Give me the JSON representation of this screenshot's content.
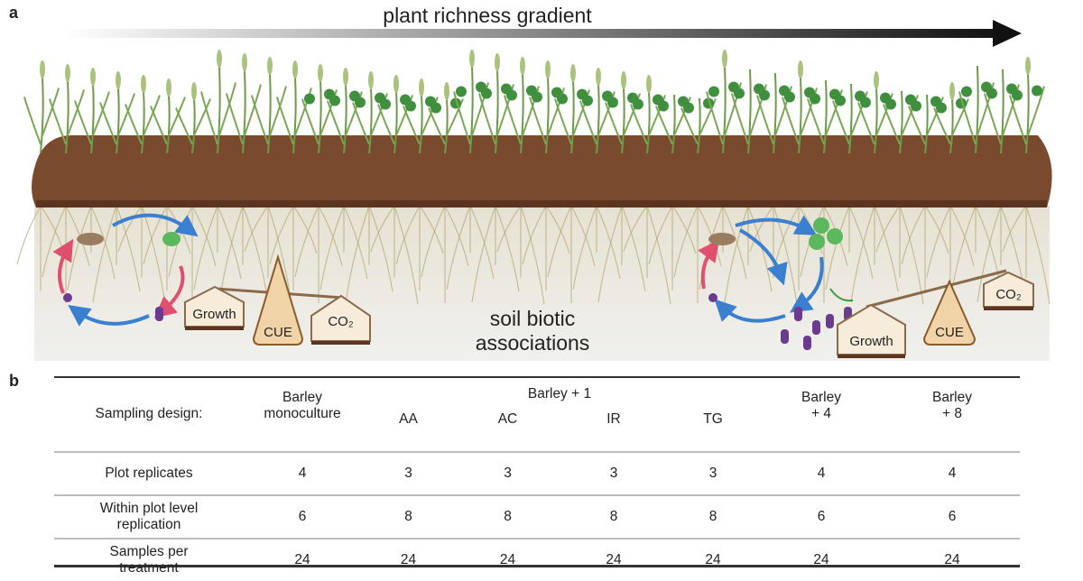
{
  "panel_a": {
    "label": "a",
    "gradient_title": "plant richness gradient",
    "soil_label_line1": "soil biotic",
    "soil_label_line2": "associations",
    "left_balance": {
      "growth": "Growth",
      "cue": "CUE",
      "co2": "CO₂"
    },
    "right_balance": {
      "growth": "Growth",
      "cue": "CUE",
      "co2": "CO₂"
    },
    "colors": {
      "soil_top": "#7a4a2e",
      "underground": "#ecebe6",
      "arrow_blue": "#3a7fd0",
      "arrow_pink": "#e0506e",
      "plant_green": "#6e9a4a",
      "box_fill": "#f6ecd9",
      "box_border": "#8a6a4a"
    }
  },
  "panel_b": {
    "label": "b",
    "header": {
      "row_label": "Sampling design:",
      "monoculture": "Barley monoculture",
      "group": "Barley + 1",
      "sub": [
        "AA",
        "AC",
        "IR",
        "TG"
      ],
      "plus4_line1": "Barley",
      "plus4_line2": "+ 4",
      "plus8_line1": "Barley",
      "plus8_line2": "+ 8"
    },
    "rows": [
      {
        "label": "Plot replicates",
        "values": [
          "4",
          "3",
          "3",
          "3",
          "3",
          "4",
          "4"
        ]
      },
      {
        "label": "Within plot level replication",
        "values": [
          "6",
          "8",
          "8",
          "8",
          "8",
          "6",
          "6"
        ]
      },
      {
        "label": "Samples per treatment",
        "values": [
          "24",
          "24",
          "24",
          "24",
          "24",
          "24",
          "24"
        ]
      }
    ]
  }
}
